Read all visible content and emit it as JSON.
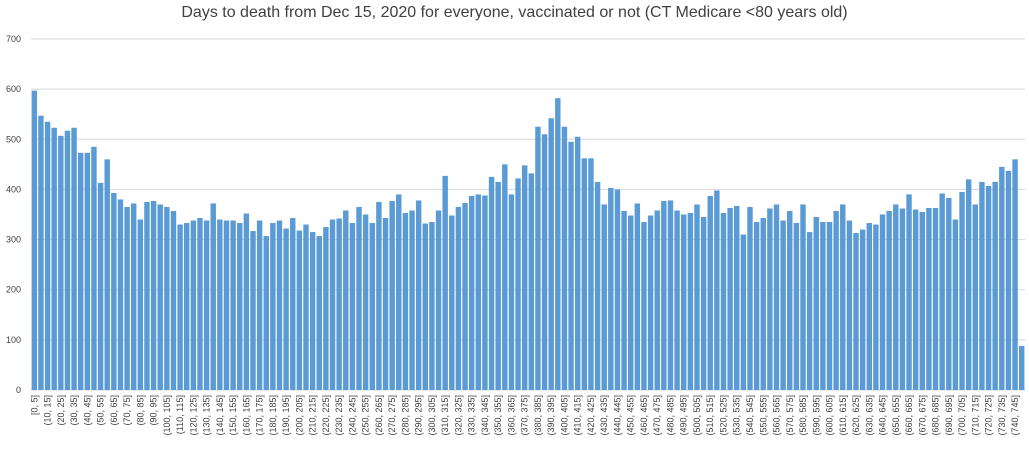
{
  "chart_data": {
    "type": "bar",
    "title": "Days to death from Dec 15, 2020 for everyone, vaccinated or not (CT Medicare <80 years old)",
    "xlabel": "",
    "ylabel": "",
    "ylim": [
      0,
      700
    ],
    "yticks": [
      0,
      100,
      200,
      300,
      400,
      500,
      600,
      700
    ],
    "grid": true,
    "legend": "none",
    "bar_color": "#5b9bd5",
    "categories": [
      "[0, 5]",
      "(5, 10]",
      "(10, 15]",
      "(15, 20]",
      "(20, 25]",
      "(25, 30]",
      "(30, 35]",
      "(35, 40]",
      "(40, 45]",
      "(45, 50]",
      "(50, 55]",
      "(55, 60]",
      "(60, 65]",
      "(65, 70]",
      "(70, 75]",
      "(75, 80]",
      "(80, 85]",
      "(85, 90]",
      "(90, 95]",
      "(95, 100]",
      "(100, 105]",
      "(105, 110]",
      "(110, 115]",
      "(115, 120]",
      "(120, 125]",
      "(125, 130]",
      "(130, 135]",
      "(135, 140]",
      "(140, 145]",
      "(145, 150]",
      "(150, 155]",
      "(155, 160]",
      "(160, 165]",
      "(165, 170]",
      "(170, 175]",
      "(175, 180]",
      "(180, 185]",
      "(185, 190]",
      "(190, 195]",
      "(195, 200]",
      "(200, 205]",
      "(205, 210]",
      "(210, 215]",
      "(215, 220]",
      "(220, 225]",
      "(225, 230]",
      "(230, 235]",
      "(235, 240]",
      "(240, 245]",
      "(245, 250]",
      "(250, 255]",
      "(255, 260]",
      "(260, 265]",
      "(265, 270]",
      "(270, 275]",
      "(275, 280]",
      "(280, 285]",
      "(285, 290]",
      "(290, 295]",
      "(295, 300]",
      "(300, 305]",
      "(305, 310]",
      "(310, 315]",
      "(315, 320]",
      "(320, 325]",
      "(325, 330]",
      "(330, 335]",
      "(335, 340]",
      "(340, 345]",
      "(345, 350]",
      "(350, 355]",
      "(355, 360]",
      "(360, 365]",
      "(365, 370]",
      "(370, 375]",
      "(375, 380]",
      "(380, 385]",
      "(385, 390]",
      "(390, 395]",
      "(395, 400]",
      "(400, 405]",
      "(405, 410]",
      "(410, 415]",
      "(415, 420]",
      "(420, 425]",
      "(425, 430]",
      "(430, 435]",
      "(435, 440]",
      "(440, 445]",
      "(445, 450]",
      "(450, 455]",
      "(455, 460]",
      "(460, 465]",
      "(465, 470]",
      "(470, 475]",
      "(475, 480]",
      "(480, 485]",
      "(485, 490]",
      "(490, 495]",
      "(495, 500]",
      "(500, 505]",
      "(505, 510]",
      "(510, 515]",
      "(515, 520]",
      "(520, 525]",
      "(525, 530]",
      "(530, 535]",
      "(535, 540]",
      "(540, 545]",
      "(545, 550]",
      "(550, 555]",
      "(555, 560]",
      "(560, 565]",
      "(565, 570]",
      "(570, 575]",
      "(575, 580]",
      "(580, 585]",
      "(585, 590]",
      "(590, 595]",
      "(595, 600]",
      "(600, 605]",
      "(605, 610]",
      "(610, 615]",
      "(615, 620]",
      "(620, 625]",
      "(625, 630]",
      "(630, 635]",
      "(635, 640]",
      "(640, 645]",
      "(645, 650]",
      "(650, 655]",
      "(655, 660]",
      "(660, 665]",
      "(665, 670]",
      "(670, 675]",
      "(675, 680]",
      "(680, 685]",
      "(685, 690]",
      "(690, 695]",
      "(695, 700]",
      "(700, 705]",
      "(705, 710]",
      "(710, 715]",
      "(715, 720]",
      "(720, 725]",
      "(725, 730]",
      "(730, 735]",
      "(735, 740]",
      "(740, 745]",
      "(745, 750]"
    ],
    "values": [
      597,
      547,
      535,
      523,
      507,
      517,
      523,
      473,
      473,
      485,
      413,
      460,
      393,
      380,
      365,
      372,
      340,
      375,
      377,
      370,
      365,
      357,
      330,
      333,
      338,
      343,
      338,
      372,
      340,
      338,
      338,
      333,
      352,
      317,
      338,
      307,
      333,
      338,
      322,
      343,
      318,
      330,
      315,
      307,
      325,
      340,
      342,
      358,
      333,
      365,
      350,
      333,
      375,
      343,
      377,
      390,
      353,
      358,
      378,
      332,
      335,
      358,
      427,
      348,
      365,
      373,
      387,
      390,
      388,
      425,
      415,
      450,
      390,
      422,
      448,
      432,
      525,
      510,
      542,
      582,
      525,
      495,
      505,
      462,
      462,
      415,
      370,
      403,
      400,
      357,
      348,
      372,
      335,
      348,
      358,
      377,
      378,
      358,
      350,
      353,
      370,
      345,
      387,
      398,
      353,
      363,
      367,
      310,
      365,
      335,
      343,
      362,
      370,
      338,
      357,
      333,
      370,
      315,
      345,
      335,
      335,
      357,
      370,
      338,
      313,
      320,
      333,
      330,
      350,
      357,
      370,
      362,
      390,
      360,
      355,
      363,
      363,
      392,
      383,
      340,
      395,
      420,
      370,
      415,
      407,
      415,
      445,
      437,
      460,
      88
    ]
  }
}
